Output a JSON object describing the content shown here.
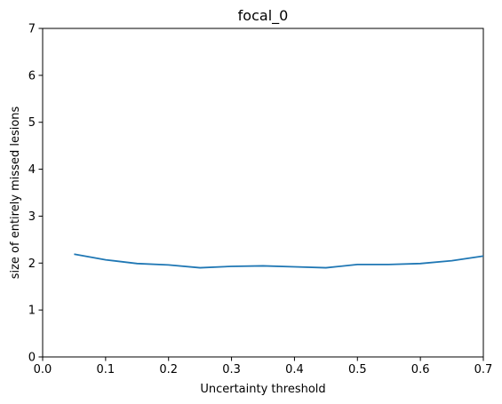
{
  "chart_data": {
    "type": "line",
    "title": "focal_0",
    "xlabel": "Uncertainty threshold",
    "ylabel": "size of entirely missed lesions",
    "xlim": [
      0.0,
      0.7
    ],
    "ylim": [
      0,
      7
    ],
    "xticks": [
      "0.0",
      "0.1",
      "0.2",
      "0.3",
      "0.4",
      "0.5",
      "0.6",
      "0.7"
    ],
    "yticks": [
      "0",
      "1",
      "2",
      "3",
      "4",
      "5",
      "6",
      "7"
    ],
    "grid": false,
    "series": [
      {
        "color": "#1f77b4",
        "x": [
          0.05,
          0.1,
          0.15,
          0.2,
          0.25,
          0.3,
          0.35,
          0.4,
          0.45,
          0.5,
          0.55,
          0.6,
          0.65,
          0.7
        ],
        "y": [
          2.19,
          2.07,
          1.99,
          1.96,
          1.9,
          1.93,
          1.94,
          1.92,
          1.9,
          1.97,
          1.97,
          1.99,
          2.05,
          2.15
        ]
      }
    ]
  }
}
